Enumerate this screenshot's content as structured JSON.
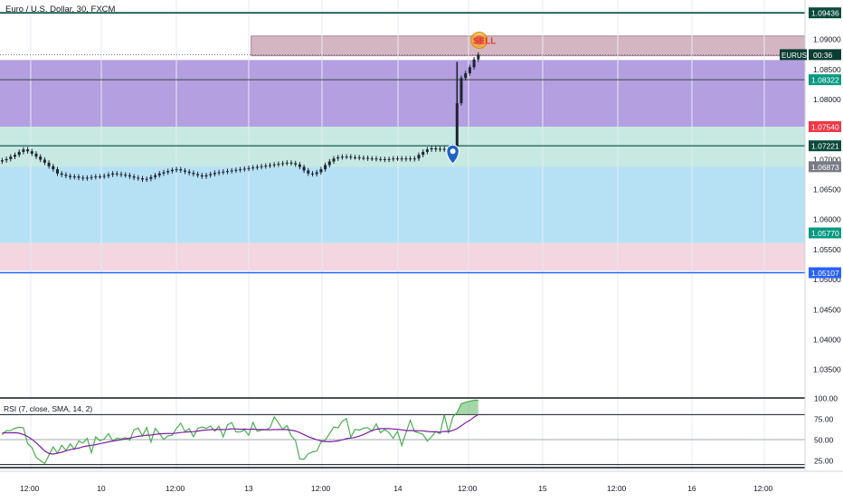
{
  "header": {
    "title": "Euro / U.S. Dollar, 30, FXCM"
  },
  "colors": {
    "zone_top": "#b07a90",
    "zone_purple": "#9b7fd6",
    "zone_teal": "#bde5dd",
    "zone_blue": "#a9dcf3",
    "zone_pink": "#f1cfd9",
    "price_line": "#004d40",
    "blue_line": "#2962ff",
    "red_badge": "#f23645",
    "green_badge": "#089981",
    "rsi_line": "#4caf50",
    "rsi_ma": "#7b1fa2"
  },
  "chart_data": [
    {
      "type": "candlestick",
      "title": "Euro / U.S. Dollar, 30, FXCM",
      "ylim": [
        1.0305,
        1.0965
      ],
      "y_ticks": [
        "1.09000",
        "1.08500",
        "1.08000",
        "1.07000",
        "1.06500",
        "1.06000",
        "1.05500",
        "1.05000",
        "1.04500",
        "1.04000",
        "1.03500"
      ],
      "x_ticks": [
        "12:00",
        "10",
        "12:00",
        "13",
        "12:00",
        "14",
        "12:00",
        "15",
        "12:00",
        "16",
        "12:00"
      ],
      "price_levels": [
        {
          "label": "1.09436",
          "value": 1.09436,
          "style": "green-line"
        },
        {
          "label": "1.08322",
          "value": 1.08322,
          "style": "green-badge"
        },
        {
          "label": "1.07540",
          "value": 1.0754,
          "style": "red-badge"
        },
        {
          "label": "1.07221",
          "value": 1.07221,
          "style": "dark-line"
        },
        {
          "label": "1.06873",
          "value": 1.06873,
          "style": "gray-badge"
        },
        {
          "label": "1.05770",
          "value": 1.0577,
          "style": "green-badge"
        },
        {
          "label": "1.05107",
          "value": 1.05107,
          "style": "blue-line"
        }
      ],
      "zones": [
        {
          "from": 1.0872,
          "to": 1.0905,
          "color": "zone_top",
          "x_start_index": 59,
          "x_end_index": 245
        },
        {
          "from": 1.0754,
          "to": 1.0865,
          "color": "zone_purple"
        },
        {
          "from": 1.0687,
          "to": 1.0754,
          "color": "zone_teal"
        },
        {
          "from": 1.056,
          "to": 1.0687,
          "color": "zone_blue"
        },
        {
          "from": 1.0514,
          "to": 1.056,
          "color": "zone_pink"
        }
      ],
      "current_price": {
        "symbol": "EURUSD",
        "timer": "00:36",
        "value": 1.0874
      },
      "sell_marker": "SELL",
      "closes": [
        1.0698,
        1.07,
        1.0704,
        1.0707,
        1.0712,
        1.0716,
        1.0713,
        1.0709,
        1.0704,
        1.0699,
        1.0694,
        1.0688,
        1.0683,
        1.0676,
        1.0674,
        1.0672,
        1.067,
        1.0671,
        1.0669,
        1.0668,
        1.0669,
        1.067,
        1.0671,
        1.0671,
        1.0672,
        1.0674,
        1.0676,
        1.0675,
        1.0674,
        1.0673,
        1.0671,
        1.0669,
        1.0668,
        1.0666,
        1.0667,
        1.067,
        1.0673,
        1.0676,
        1.0678,
        1.068,
        1.0682,
        1.0683,
        1.0681,
        1.0679,
        1.0677,
        1.0675,
        1.0673,
        1.0671,
        1.0673,
        1.0675,
        1.0677,
        1.0678,
        1.0679,
        1.068,
        1.0681,
        1.0682,
        1.0683,
        1.0684,
        1.0685,
        1.0686,
        1.0687,
        1.0688,
        1.0689,
        1.069,
        1.0691,
        1.0692,
        1.0693,
        1.0694,
        1.0693,
        1.0691,
        1.0687,
        1.0681,
        1.0676,
        1.0675,
        1.0678,
        1.0683,
        1.069,
        1.0696,
        1.0701,
        1.0703,
        1.0704,
        1.0704,
        1.0703,
        1.0703,
        1.0702,
        1.0702,
        1.0701,
        1.0701,
        1.07,
        1.07,
        1.0699,
        1.07,
        1.0701,
        1.0701,
        1.07,
        1.0701,
        1.07,
        1.0701,
        1.0707,
        1.0712,
        1.0716,
        1.0718,
        1.0716,
        1.0717,
        1.0716,
        1.0717,
        1.0721,
        1.0793,
        1.0835,
        1.0843,
        1.0853,
        1.0866,
        1.0874
      ],
      "x_index_start_of_spike": 106
    },
    {
      "type": "line",
      "title": "RSI (7, close, SMA, 14, 2)",
      "ylim": [
        13.0,
        100.0
      ],
      "y_ticks": [
        "100.00",
        "75.00",
        "50.00",
        "25.00"
      ],
      "bands": [
        80,
        50,
        20
      ],
      "series": [
        {
          "values": [
            56.0,
            60.7,
            60.9,
            63.6,
            64.8,
            64.2,
            45.1,
            40.4,
            28.5,
            24.9,
            21.0,
            31.2,
            41.2,
            33.4,
            43.2,
            36.9,
            44.9,
            38.3,
            48.3,
            45.8,
            51.5,
            34.1,
            53.3,
            48.6,
            50.6,
            57.1,
            48.3,
            51.7,
            50.7,
            52.4,
            49.2,
            61.6,
            63.8,
            54.3,
            64.5,
            47.0,
            63.5,
            57.0,
            50.1,
            54.3,
            55.2,
            63.5,
            69.7,
            59.6,
            63.1,
            53.4,
            63.5,
            65.2,
            63.5,
            66.3,
            60.1,
            66.0,
            53.4,
            67.6,
            70.5,
            59.2,
            59.2,
            61.5,
            55.1,
            70.6,
            59.9,
            61.5,
            61.8,
            64.0,
            77.3,
            69.9,
            62.2,
            66.9,
            54.4,
            48.9,
            26.6,
            26.5,
            32.8,
            35.2,
            36.2,
            46.9,
            49.3,
            57.1,
            65.1,
            64.0,
            72.0,
            75.2,
            52.8,
            62.3,
            61.3,
            63.8,
            64.3,
            60.1,
            68.8,
            58.2,
            62.0,
            58.2,
            51.5,
            60.1,
            42.8,
            58.5,
            73.2,
            59.6,
            58.1,
            56.2,
            48.3,
            53.4,
            59.7,
            57.0,
            79.5,
            58.6,
            77.0,
            82.4,
            93.1,
            94.9,
            96.1,
            97.3,
            97.3
          ]
        },
        {
          "values": [
            58.0,
            58.1,
            58.1,
            58.2,
            57.7,
            56.2,
            53.7,
            50.3,
            46.1,
            41.3,
            36.4,
            33.2,
            32.6,
            33.5,
            34.7,
            36.5,
            37.8,
            38.9,
            39.8,
            41.4,
            42.4,
            43.1,
            43.9,
            45.0,
            46.1,
            47.3,
            48.2,
            49.0,
            49.8,
            50.6,
            51.6,
            52.9,
            53.9,
            54.5,
            55.3,
            55.4,
            56.3,
            56.9,
            57.2,
            57.4,
            57.2,
            57.8,
            58.5,
            58.9,
            59.3,
            59.5,
            60.2,
            61.0,
            61.5,
            61.9,
            61.9,
            62.1,
            62.0,
            62.3,
            62.9,
            62.8,
            62.4,
            62.6,
            62.3,
            62.6,
            62.2,
            62.0,
            61.9,
            61.6,
            62.0,
            62.2,
            62.1,
            61.9,
            61.3,
            60.3,
            58.3,
            55.8,
            53.5,
            51.6,
            49.8,
            48.5,
            47.7,
            47.4,
            47.8,
            48.5,
            49.7,
            51.2,
            51.8,
            52.6,
            54.1,
            56.1,
            58.5,
            60.9,
            62.4,
            63.1,
            63.2,
            63.1,
            62.7,
            62.4,
            61.7,
            60.8,
            60.8,
            60.7,
            60.6,
            60.5,
            59.8,
            59.3,
            59.3,
            58.8,
            59.9,
            59.8,
            61.0,
            63.1,
            66.5,
            70.2,
            73.0,
            77.1,
            80.0
          ]
        }
      ]
    }
  ]
}
